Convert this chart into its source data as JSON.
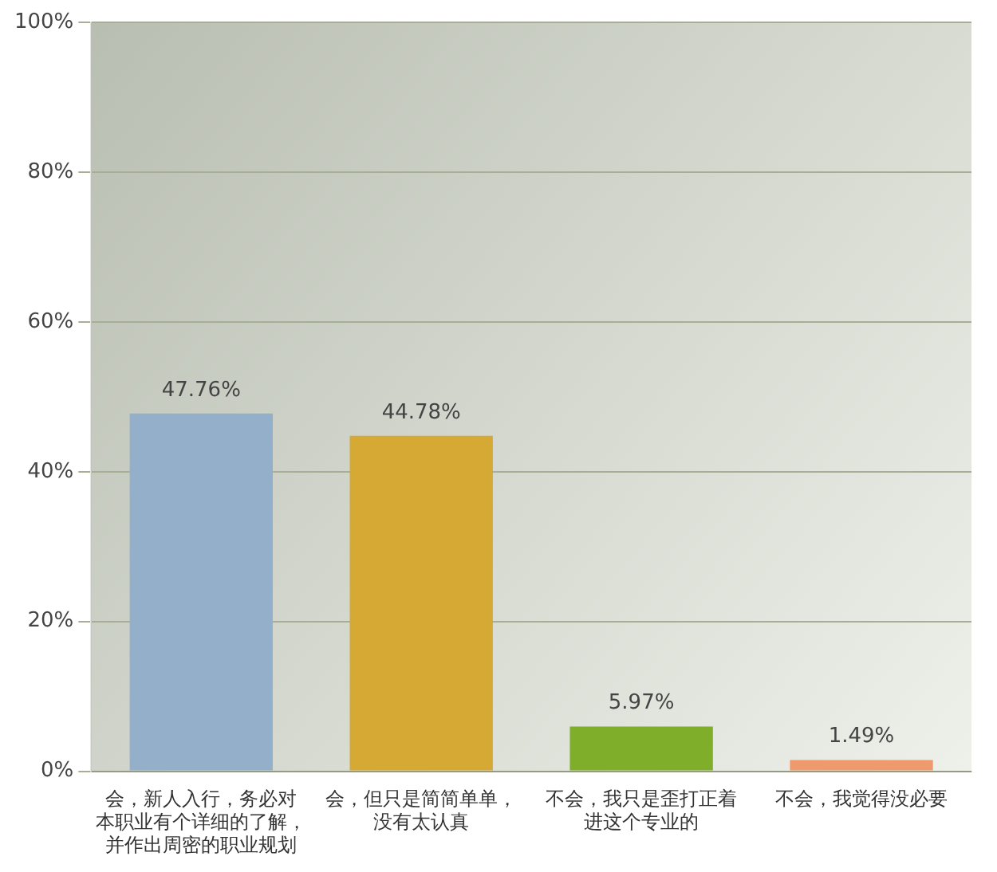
{
  "chart_data": {
    "type": "bar",
    "categories": [
      "会，新人入行，务必对本职业有个详细的了解，并作出周密的职业规划",
      "会，但只是简简单单，没有太认真",
      "不会，我只是歪打正着进这个专业的",
      "不会，我觉得没必要"
    ],
    "values": [
      47.76,
      44.78,
      5.97,
      1.49
    ],
    "colors": [
      "#93afc9",
      "#d6a834",
      "#7fae2a",
      "#ee9a6c"
    ],
    "value_labels": [
      "47.76%",
      "44.78%",
      "5.97%",
      "1.49%"
    ],
    "ylim": [
      0,
      100
    ],
    "yticks": [
      {
        "value": 0,
        "label": "0%"
      },
      {
        "value": 20,
        "label": "20%"
      },
      {
        "value": 40,
        "label": "40%"
      },
      {
        "value": 60,
        "label": "60%"
      },
      {
        "value": 80,
        "label": "80%"
      },
      {
        "value": 100,
        "label": "100%"
      }
    ],
    "grid": "y"
  }
}
